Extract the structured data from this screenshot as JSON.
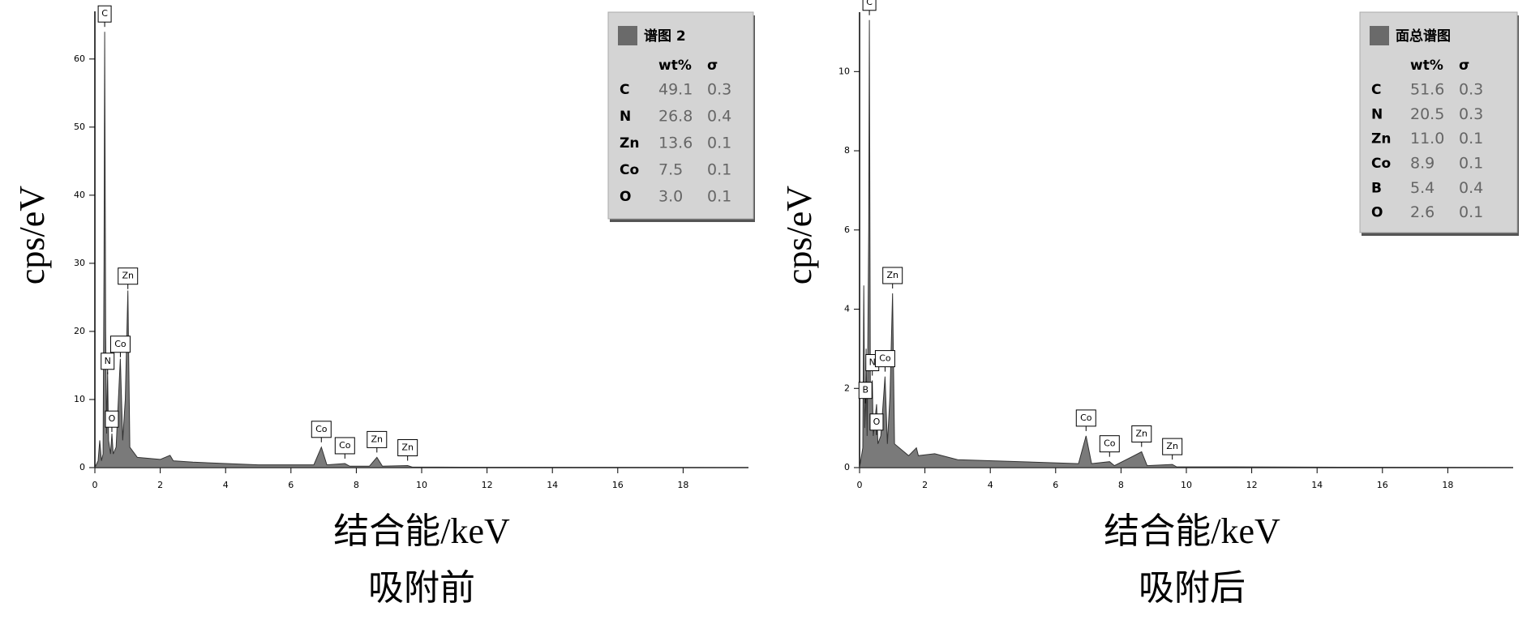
{
  "chart_data": [
    {
      "type": "area",
      "ylabel": "cps/eV",
      "xlabel": "结合能/keV",
      "caption": "吸附前",
      "color": "#7a7a7a",
      "xlim": [
        0,
        20
      ],
      "ylim": [
        0,
        67
      ],
      "xticks": [
        0,
        2,
        4,
        6,
        8,
        10,
        12,
        14,
        16,
        18
      ],
      "yticks": [
        0,
        10,
        20,
        30,
        40,
        50,
        60
      ],
      "x": [
        0,
        0.1,
        0.15,
        0.2,
        0.25,
        0.28,
        0.3,
        0.33,
        0.36,
        0.39,
        0.42,
        0.48,
        0.52,
        0.56,
        0.65,
        0.78,
        0.85,
        0.93,
        1.01,
        1.07,
        1.3,
        2,
        2.3,
        2.4,
        3,
        5,
        6.7,
        6.93,
        7.1,
        7.65,
        7.8,
        8.4,
        8.63,
        8.8,
        9.57,
        9.7,
        12,
        20
      ],
      "values": [
        0,
        1,
        4,
        1,
        2,
        30,
        64,
        20,
        5,
        14,
        4,
        2,
        5,
        2,
        3,
        16,
        4,
        10,
        26,
        3,
        1.5,
        1.2,
        1.8,
        1,
        0.8,
        0.4,
        0.4,
        3,
        0.4,
        0.6,
        0.2,
        0.2,
        1.5,
        0.2,
        0.3,
        0.1,
        0.05,
        0
      ],
      "annotations": [
        {
          "text": "C",
          "x": 0.3,
          "y": 64
        },
        {
          "text": "N",
          "x": 0.39,
          "y": 13
        },
        {
          "text": "O",
          "x": 0.52,
          "y": 4.5
        },
        {
          "text": "Co",
          "x": 0.78,
          "y": 15.5
        },
        {
          "text": "Zn",
          "x": 1.01,
          "y": 25.5
        },
        {
          "text": "Co",
          "x": 6.93,
          "y": 3
        },
        {
          "text": "Co",
          "x": 7.65,
          "y": 0.6
        },
        {
          "text": "Zn",
          "x": 8.63,
          "y": 1.5
        },
        {
          "text": "Zn",
          "x": 9.57,
          "y": 0.3
        }
      ],
      "composition": {
        "title": "谱图 2",
        "columns": [
          "wt%",
          "σ"
        ],
        "rows": [
          [
            "C",
            49.1,
            0.3
          ],
          [
            "N",
            26.8,
            0.4
          ],
          [
            "Zn",
            13.6,
            0.1
          ],
          [
            "Co",
            7.5,
            0.1
          ],
          [
            "O",
            {
              "value": 3,
              "label": "3.0"
            },
            0.1
          ]
        ]
      }
    },
    {
      "type": "area",
      "ylabel": "cps/eV",
      "xlabel": "结合能/keV",
      "caption": "吸附后",
      "color": "#7a7a7a",
      "xlim": [
        0,
        20
      ],
      "ylim": [
        0,
        11.5
      ],
      "xticks": [
        0,
        2,
        4,
        6,
        8,
        10,
        12,
        14,
        16,
        18
      ],
      "yticks": [
        0,
        2,
        4,
        6,
        8,
        10
      ],
      "x": [
        0,
        0.1,
        0.13,
        0.16,
        0.18,
        0.2,
        0.23,
        0.28,
        0.3,
        0.33,
        0.39,
        0.42,
        0.52,
        0.56,
        0.65,
        0.78,
        0.85,
        0.93,
        1.01,
        1.07,
        1.5,
        1.74,
        1.8,
        2.3,
        3,
        6.7,
        6.93,
        7.1,
        7.65,
        7.8,
        8.63,
        8.8,
        9.57,
        9.7,
        20
      ],
      "values": [
        0,
        0.5,
        4.6,
        1,
        1.5,
        3,
        0.8,
        6,
        11.3,
        2,
        2.2,
        0.8,
        1.6,
        0.6,
        0.8,
        2.3,
        0.6,
        1.8,
        4.4,
        0.6,
        0.3,
        0.5,
        0.3,
        0.35,
        0.2,
        0.1,
        0.8,
        0.1,
        0.15,
        0.05,
        0.4,
        0.05,
        0.08,
        0.02,
        0
      ],
      "annotations": [
        {
          "text": "C",
          "x": 0.3,
          "y": 11.3
        },
        {
          "text": "B",
          "x": 0.18,
          "y": 1.5
        },
        {
          "text": "N",
          "x": 0.39,
          "y": 2.2
        },
        {
          "text": "O",
          "x": 0.52,
          "y": 0.7
        },
        {
          "text": "Co",
          "x": 0.78,
          "y": 2.3
        },
        {
          "text": "Zn",
          "x": 1.01,
          "y": 4.4
        },
        {
          "text": "Co",
          "x": 6.93,
          "y": 0.8
        },
        {
          "text": "Co",
          "x": 7.65,
          "y": 0.15
        },
        {
          "text": "Zn",
          "x": 8.63,
          "y": 0.4
        },
        {
          "text": "Zn",
          "x": 9.57,
          "y": 0.08
        }
      ],
      "composition": {
        "title": "面总谱图",
        "columns": [
          "wt%",
          "σ"
        ],
        "rows": [
          [
            "C",
            51.6,
            0.3
          ],
          [
            "N",
            20.5,
            0.3
          ],
          [
            "Zn",
            {
              "value": 11,
              "label": "11.0"
            },
            0.1
          ],
          [
            "Co",
            8.9,
            0.1
          ],
          [
            "B",
            5.4,
            0.4
          ],
          [
            "O",
            2.6,
            0.1
          ]
        ]
      }
    }
  ]
}
